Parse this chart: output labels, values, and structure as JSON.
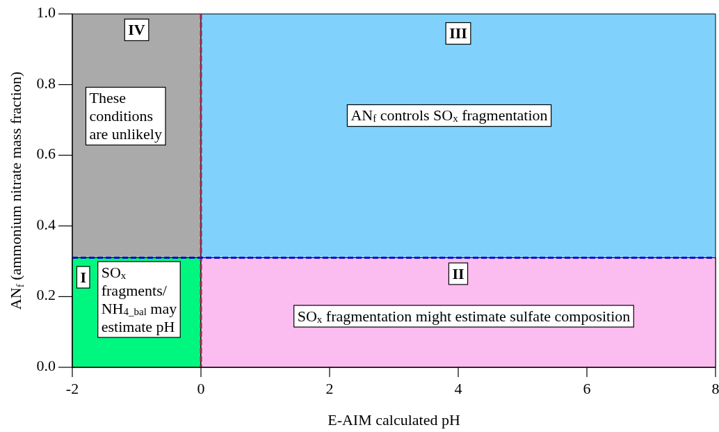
{
  "chart_data": {
    "type": "area",
    "xlabel": "E-AIM calculated pH",
    "ylabel": "AN$_{f}$ (ammonium nitrate mass fraction)",
    "xlim": [
      -2,
      8
    ],
    "xticks": [
      -2,
      0,
      2,
      4,
      6,
      8
    ],
    "ylim": [
      0,
      1
    ],
    "yticks": [
      {
        "value": 0,
        "label": "0.0"
      },
      {
        "value": 0.2,
        "label": "0.2"
      },
      {
        "value": 0.4,
        "label": "0.4"
      },
      {
        "value": 0.6,
        "label": "0.6"
      },
      {
        "value": 0.8,
        "label": "0.8"
      },
      {
        "value": 1,
        "label": "1.0"
      }
    ],
    "grid": false,
    "series": [
      {
        "color": "#aaaaaa",
        "x": [
          -2,
          0
        ],
        "values": [
          1,
          1
        ]
      },
      {
        "color": "#00f77f",
        "x": [
          -2,
          0
        ],
        "values": [
          0.31,
          0.31
        ]
      },
      {
        "color": "#80d2fc",
        "x": [
          0,
          8
        ],
        "values": [
          1,
          1
        ]
      },
      {
        "color": "#fbbcf0",
        "x": [
          0,
          8
        ],
        "values": [
          0.31,
          0.31
        ]
      }
    ],
    "ref_lines": [
      {
        "axis": "x",
        "value": 0,
        "color": "#a0204a",
        "line_style": "dashed"
      },
      {
        "axis": "y",
        "value": 0.31,
        "color": "#1010d0",
        "line_style": "dashed"
      }
    ],
    "annotations": [
      {
        "text": "IV",
        "x": -1,
        "y": 0.95
      },
      "These\nconditions\nare unlikely",
      {
        "text": "III",
        "x": 4,
        "y": 0.94
      },
      "AN$_{f}$ controls SO$_{x}$ fragmentation",
      {
        "text": "I",
        "x": -1.83,
        "y": 0.25
      },
      "SO$_{x}$\nfragments/\nNH$_{4_bal}$ may\nestimate pH",
      {
        "text": "II",
        "x": 4,
        "y": 0.26
      },
      "SO$_{x}$ fragmentation might estimate sulfate composition"
    ]
  }
}
